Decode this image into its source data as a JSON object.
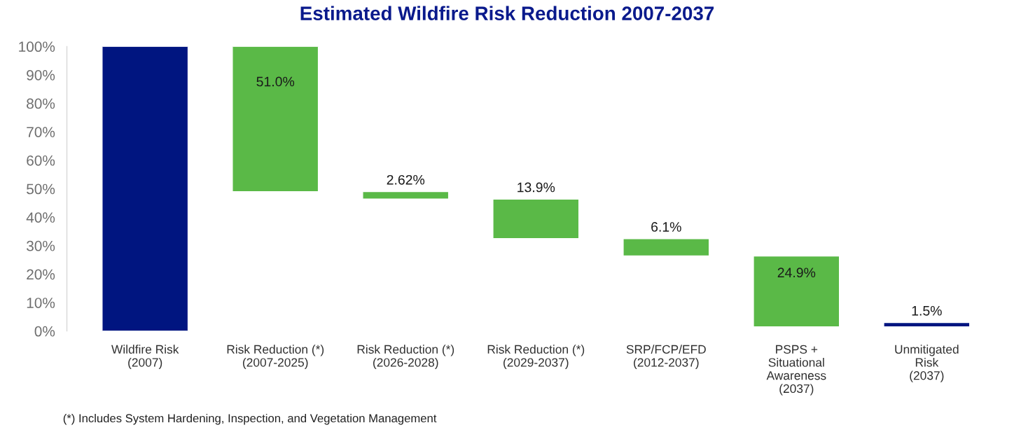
{
  "chart_data": {
    "type": "bar",
    "title": "Estimated Wildfire Risk Reduction 2007-2037",
    "categories": [
      "Wildfire Risk\n(2007)",
      "Risk Reduction (*)\n(2007-2025)",
      "Risk Reduction (*)\n(2026-2028)",
      "Risk Reduction (*)\n(2029-2037)",
      "SRP/FCP/EFD\n(2012-2037)",
      "PSPS +\nSituational\nAwareness\n(2037)",
      "Unmitigated\nRisk\n(2037)"
    ],
    "values": [
      100,
      51.0,
      2.62,
      13.9,
      6.1,
      24.9,
      1.5
    ],
    "base": [
      0,
      49.0,
      46.38,
      32.48,
      26.38,
      1.48,
      1.5
    ],
    "colors": [
      "#001580",
      "#5ab947",
      "#5ab947",
      "#5ab947",
      "#5ab947",
      "#5ab947",
      "#001580"
    ],
    "value_labels": [
      null,
      "51.0%",
      "2.62%",
      "13.9%",
      "6.1%",
      "24.9%",
      "1.5%"
    ],
    "ylim": [
      0,
      100
    ],
    "yticks": [
      {
        "value": 0,
        "label": "0%"
      },
      {
        "value": 10,
        "label": "10%"
      },
      {
        "value": 20,
        "label": "20%"
      },
      {
        "value": 30,
        "label": "30%"
      },
      {
        "value": 40,
        "label": "40%"
      },
      {
        "value": 50,
        "label": "50%"
      },
      {
        "value": 60,
        "label": "60%"
      },
      {
        "value": 70,
        "label": "70%"
      },
      {
        "value": 80,
        "label": "80%"
      },
      {
        "value": 90,
        "label": "90%"
      },
      {
        "value": 100,
        "label": "100%"
      }
    ],
    "grid": false,
    "legend": false,
    "annotations": [
      "(*) Includes System Hardening, Inspection, and Vegetation Management"
    ]
  }
}
